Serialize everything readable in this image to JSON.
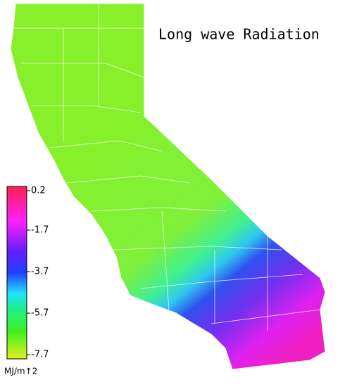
{
  "title": "Long wave Radiation",
  "colorbar": {
    "range": [
      -7.9,
      0.4
    ],
    "ticks": [
      0.2,
      -1.7,
      -3.7,
      -5.7,
      -7.7
    ],
    "unit": "MJ/m↑2"
  }
}
